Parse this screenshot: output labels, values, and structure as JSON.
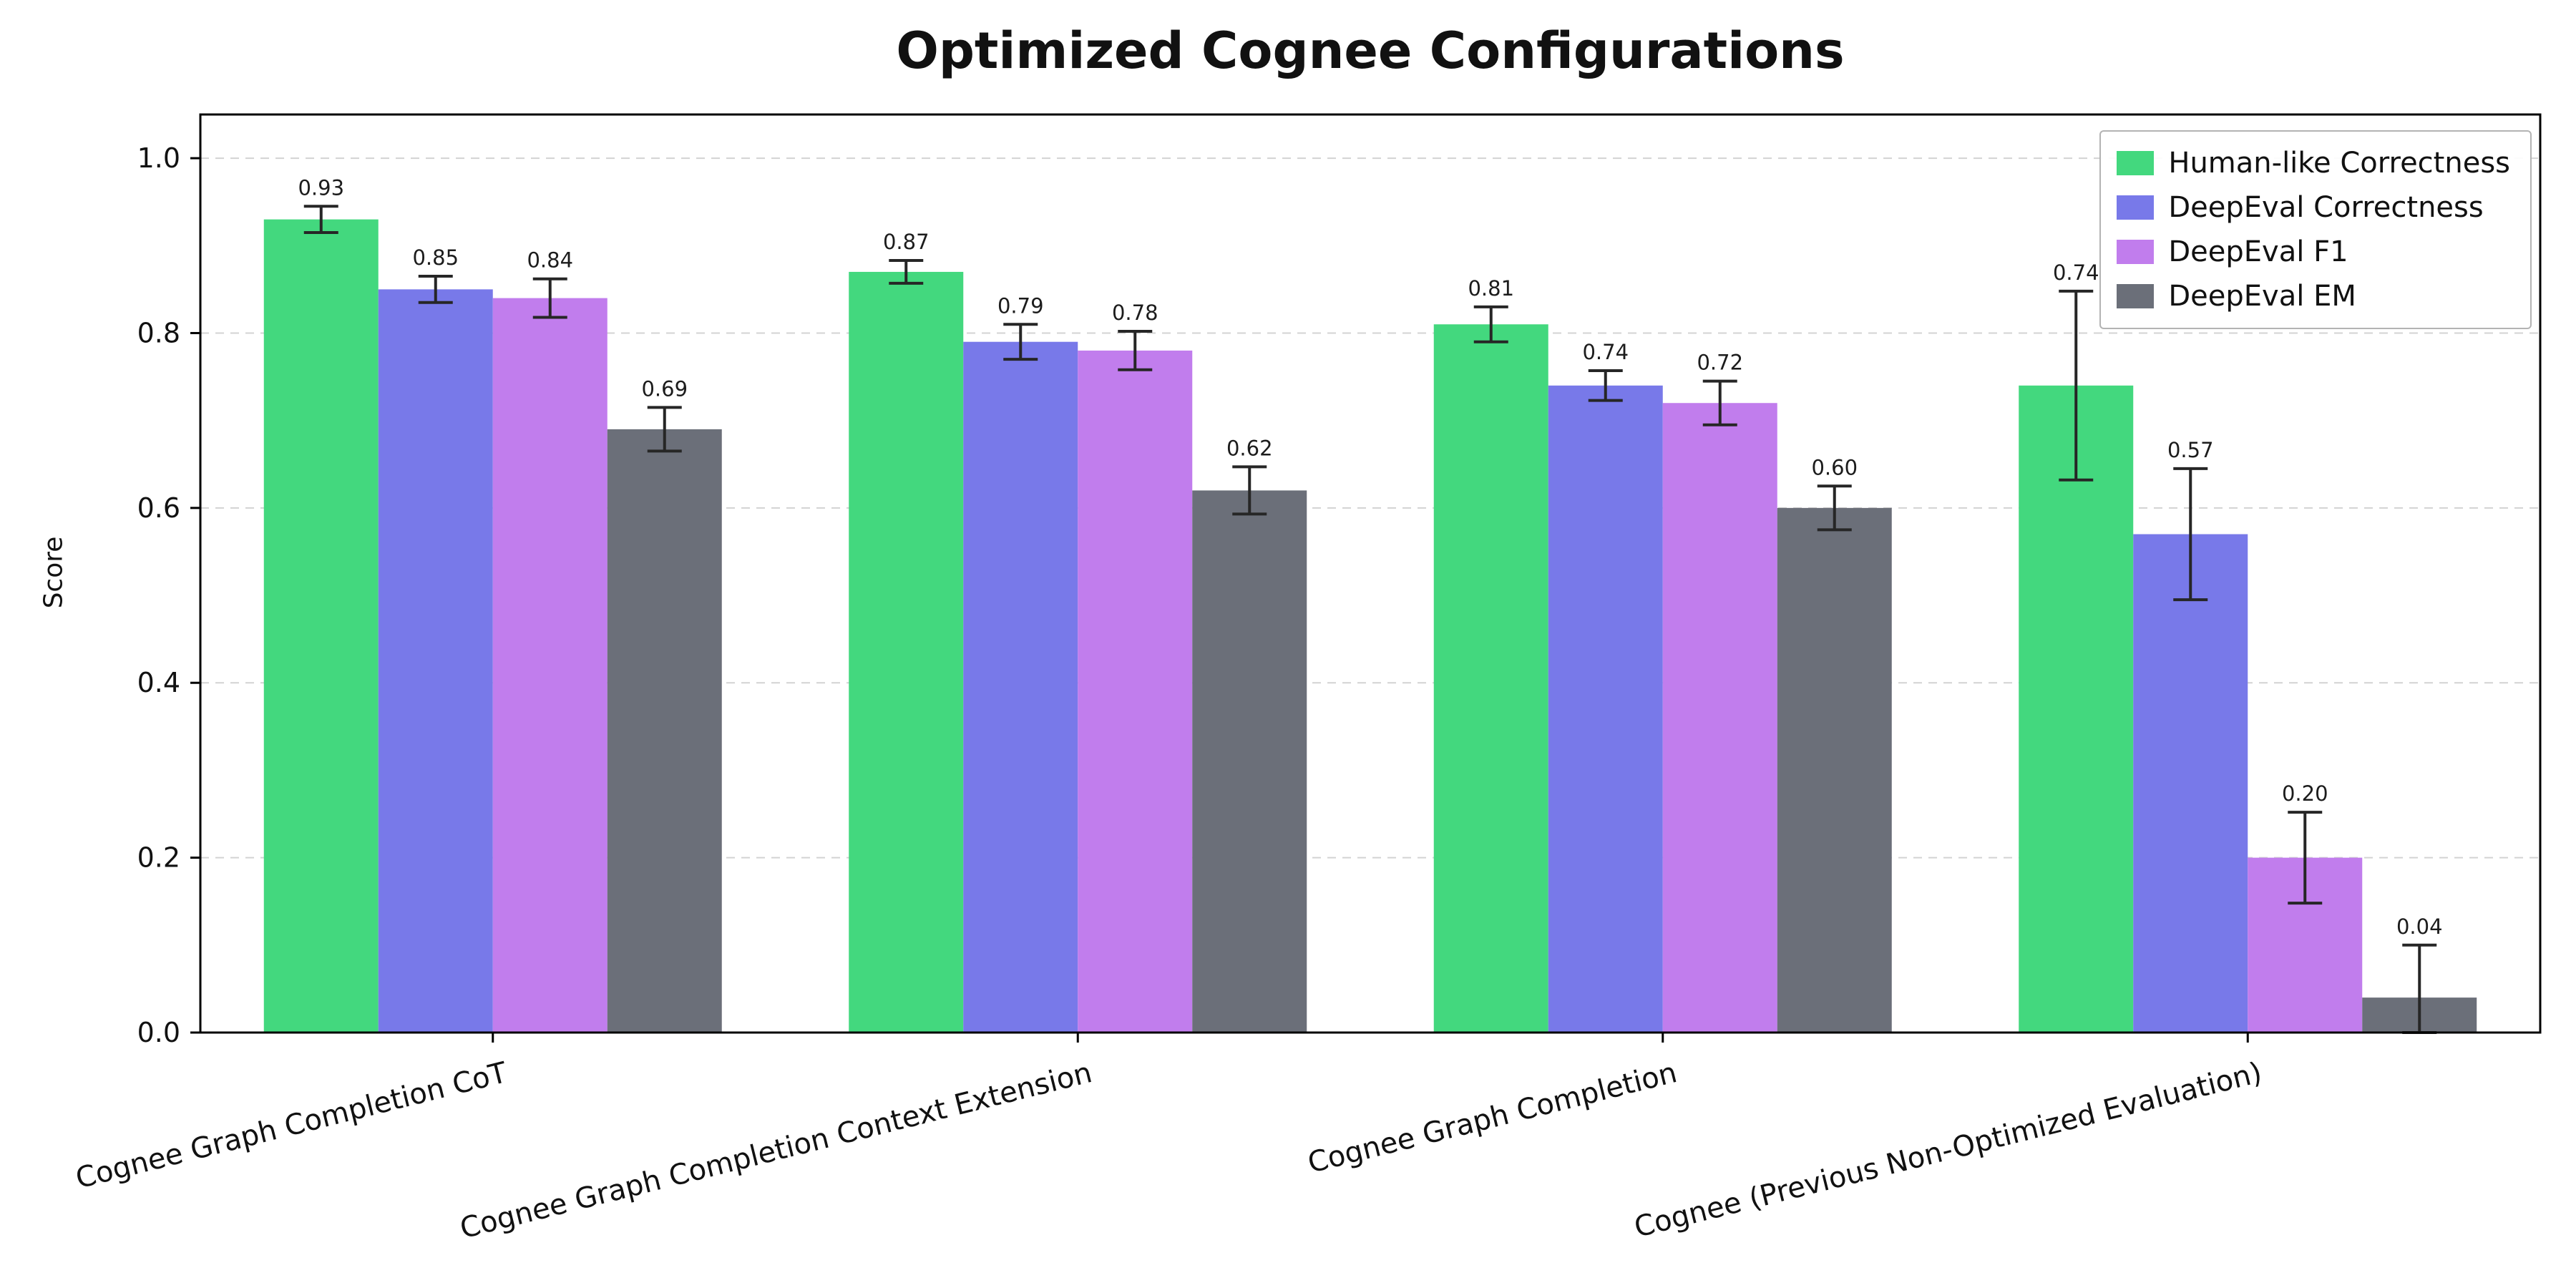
{
  "chart_data": {
    "type": "bar",
    "title": "Optimized Cognee Configurations",
    "ylabel": "Score",
    "xlabel": "",
    "ylim": [
      0,
      1.05
    ],
    "yticks": [
      0.0,
      0.2,
      0.4,
      0.6,
      0.8,
      1.0
    ],
    "grid": "horizontal-dashed",
    "legend_position": "upper right",
    "categories": [
      "Cognee Graph Completion CoT",
      "Cognee Graph Completion Context Extension",
      "Cognee Graph Completion",
      "Cognee (Previous Non-Optimized Evaluation)"
    ],
    "series": [
      {
        "name": "Human-like Correctness",
        "color": "#43d87e",
        "values": [
          0.93,
          0.87,
          0.81,
          0.74
        ],
        "errors": [
          0.015,
          0.013,
          0.02,
          0.108
        ]
      },
      {
        "name": "DeepEval Correctness",
        "color": "#7879e9",
        "values": [
          0.85,
          0.79,
          0.74,
          0.57
        ],
        "errors": [
          0.015,
          0.02,
          0.017,
          0.075
        ]
      },
      {
        "name": "DeepEval F1",
        "color": "#c17ded",
        "values": [
          0.84,
          0.78,
          0.72,
          0.2
        ],
        "errors": [
          0.022,
          0.022,
          0.025,
          0.052
        ]
      },
      {
        "name": "DeepEval EM",
        "color": "#6b6f79",
        "values": [
          0.69,
          0.62,
          0.6,
          0.04
        ],
        "errors": [
          0.025,
          0.027,
          0.025,
          0.06
        ]
      }
    ],
    "colors": {
      "grid": "#d3d3d3",
      "spine": "#000000",
      "errorbar": "#262626",
      "value_label": "#1c1c1c",
      "tick_label": "#111111"
    }
  }
}
